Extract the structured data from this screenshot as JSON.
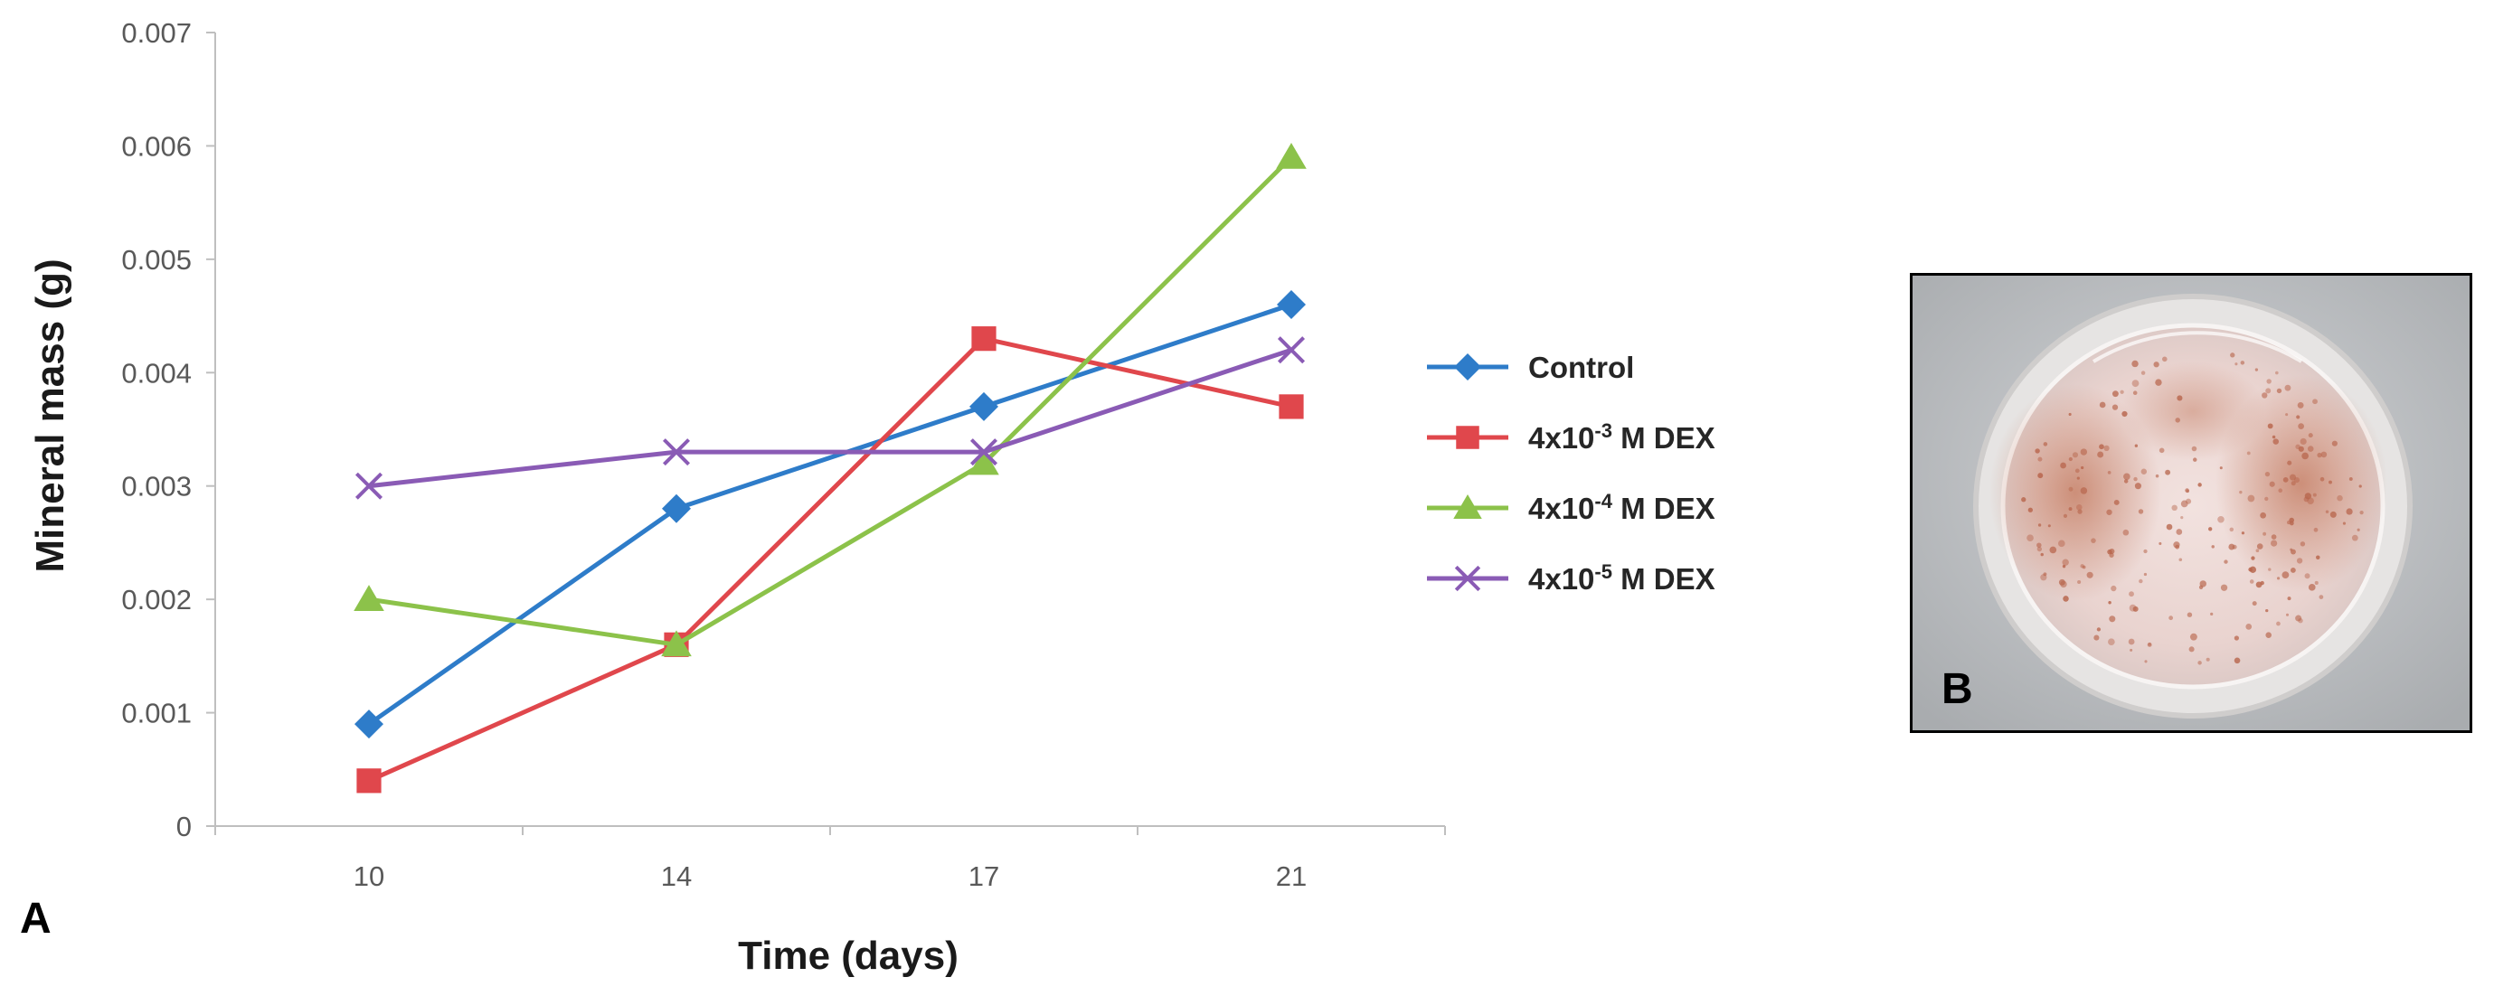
{
  "chart_data": {
    "type": "line",
    "panel_label": "A",
    "xlabel": "Time (days)",
    "ylabel": "Mineral mass (g)",
    "categories": [
      "10",
      "14",
      "17",
      "21"
    ],
    "ylim": [
      0,
      0.007
    ],
    "yticks": [
      "0",
      "0.001",
      "0.002",
      "0.003",
      "0.004",
      "0.005",
      "0.006",
      "0.007"
    ],
    "legend_position": "right",
    "series": [
      {
        "name": "Control",
        "label_base": "Control",
        "label_sup": "",
        "label_rest": "",
        "marker": "diamond",
        "color": "#2e7cc9",
        "values": [
          0.0009,
          0.0028,
          0.0037,
          0.0046
        ]
      },
      {
        "name": "4x10-3 M DEX",
        "label_base": "4x10",
        "label_sup": "-3",
        "label_rest": " M DEX",
        "marker": "square",
        "color": "#e0474c",
        "values": [
          0.0004,
          0.0016,
          0.0043,
          0.0037
        ]
      },
      {
        "name": "4x10-4 M DEX",
        "label_base": "4x10",
        "label_sup": "-4",
        "label_rest": " M DEX",
        "marker": "triangle",
        "color": "#8cc24a",
        "values": [
          0.002,
          0.0016,
          0.0032,
          0.0059
        ]
      },
      {
        "name": "4x10-5 M DEX",
        "label_base": "4x10",
        "label_sup": "-5",
        "label_rest": " M DEX",
        "marker": "x",
        "color": "#8a5bb5",
        "values": [
          0.003,
          0.0033,
          0.0033,
          0.0042
        ]
      }
    ]
  },
  "photo": {
    "panel_label": "B"
  }
}
